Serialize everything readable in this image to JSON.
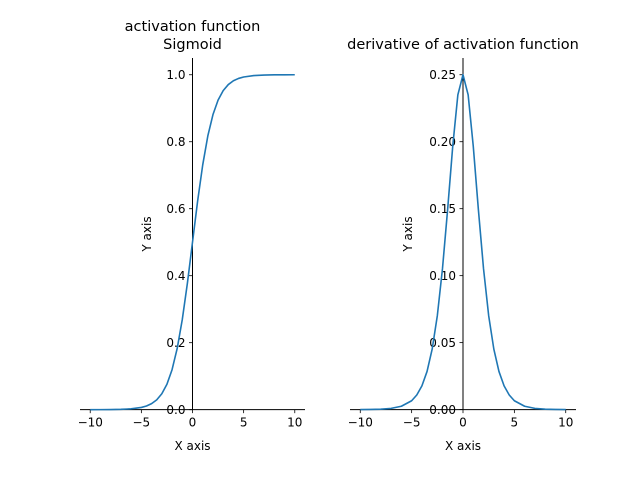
{
  "chart_data": [
    {
      "type": "line",
      "title": [
        "activation function",
        "Sigmoid"
      ],
      "xlabel": "X axis",
      "ylabel": "Y axis",
      "xlim": [
        -11,
        11
      ],
      "ylim": [
        -0.001,
        1.05
      ],
      "xticks": [
        -10,
        -5,
        0,
        5,
        10
      ],
      "xtick_labels": [
        "−10",
        "−5",
        "0",
        "5",
        "10"
      ],
      "yticks": [
        0,
        0.2,
        0.4,
        0.6,
        0.8,
        1.0
      ],
      "ytick_labels": [
        "0.0",
        "0.2",
        "0.4",
        "0.6",
        "0.8",
        "1.0"
      ],
      "grid": false,
      "spines": "centered at origin",
      "color": "#1f77b4",
      "series": [
        {
          "x": [
            -10,
            -9,
            -8,
            -7,
            -6,
            -5,
            -4.5,
            -4,
            -3.5,
            -3,
            -2.5,
            -2,
            -1.5,
            -1,
            -0.5,
            0,
            0.5,
            1,
            1.5,
            2,
            2.5,
            3,
            3.5,
            4,
            4.5,
            5,
            6,
            7,
            8,
            9,
            10
          ],
          "y": [
            0.0,
            0.0001,
            0.0003,
            0.0009,
            0.0025,
            0.0067,
            0.011,
            0.018,
            0.0293,
            0.0474,
            0.0759,
            0.1192,
            0.1824,
            0.2689,
            0.3775,
            0.5,
            0.6225,
            0.7311,
            0.8176,
            0.8808,
            0.9241,
            0.9526,
            0.9707,
            0.982,
            0.989,
            0.9933,
            0.9975,
            0.9991,
            0.9997,
            0.9999,
            1.0
          ]
        }
      ]
    },
    {
      "type": "line",
      "title": [
        "derivative of activation function"
      ],
      "xlabel": "X axis",
      "ylabel": "Y axis",
      "xlim": [
        -11,
        11
      ],
      "ylim": [
        -0.0003,
        0.2625
      ],
      "xticks": [
        -10,
        -5,
        0,
        5,
        10
      ],
      "xtick_labels": [
        "−10",
        "−5",
        "0",
        "5",
        "10"
      ],
      "yticks": [
        0,
        0.05,
        0.1,
        0.15,
        0.2,
        0.25
      ],
      "ytick_labels": [
        "0.00",
        "0.05",
        "0.10",
        "0.15",
        "0.20",
        "0.25"
      ],
      "grid": false,
      "spines": "centered at origin",
      "color": "#1f77b4",
      "series": [
        {
          "x": [
            -10,
            -9,
            -8,
            -7,
            -6,
            -5,
            -4.5,
            -4,
            -3.5,
            -3,
            -2.5,
            -2,
            -1.5,
            -1,
            -0.5,
            0,
            0.5,
            1,
            1.5,
            2,
            2.5,
            3,
            3.5,
            4,
            4.5,
            5,
            6,
            7,
            8,
            9,
            10
          ],
          "y": [
            0.0,
            0.0001,
            0.0003,
            0.0009,
            0.0025,
            0.0066,
            0.0109,
            0.0177,
            0.0285,
            0.0452,
            0.0701,
            0.105,
            0.1491,
            0.1966,
            0.235,
            0.25,
            0.235,
            0.1966,
            0.1491,
            0.105,
            0.0701,
            0.0452,
            0.0285,
            0.0177,
            0.0109,
            0.0066,
            0.0025,
            0.0009,
            0.0003,
            0.0001,
            0.0
          ]
        }
      ]
    }
  ]
}
